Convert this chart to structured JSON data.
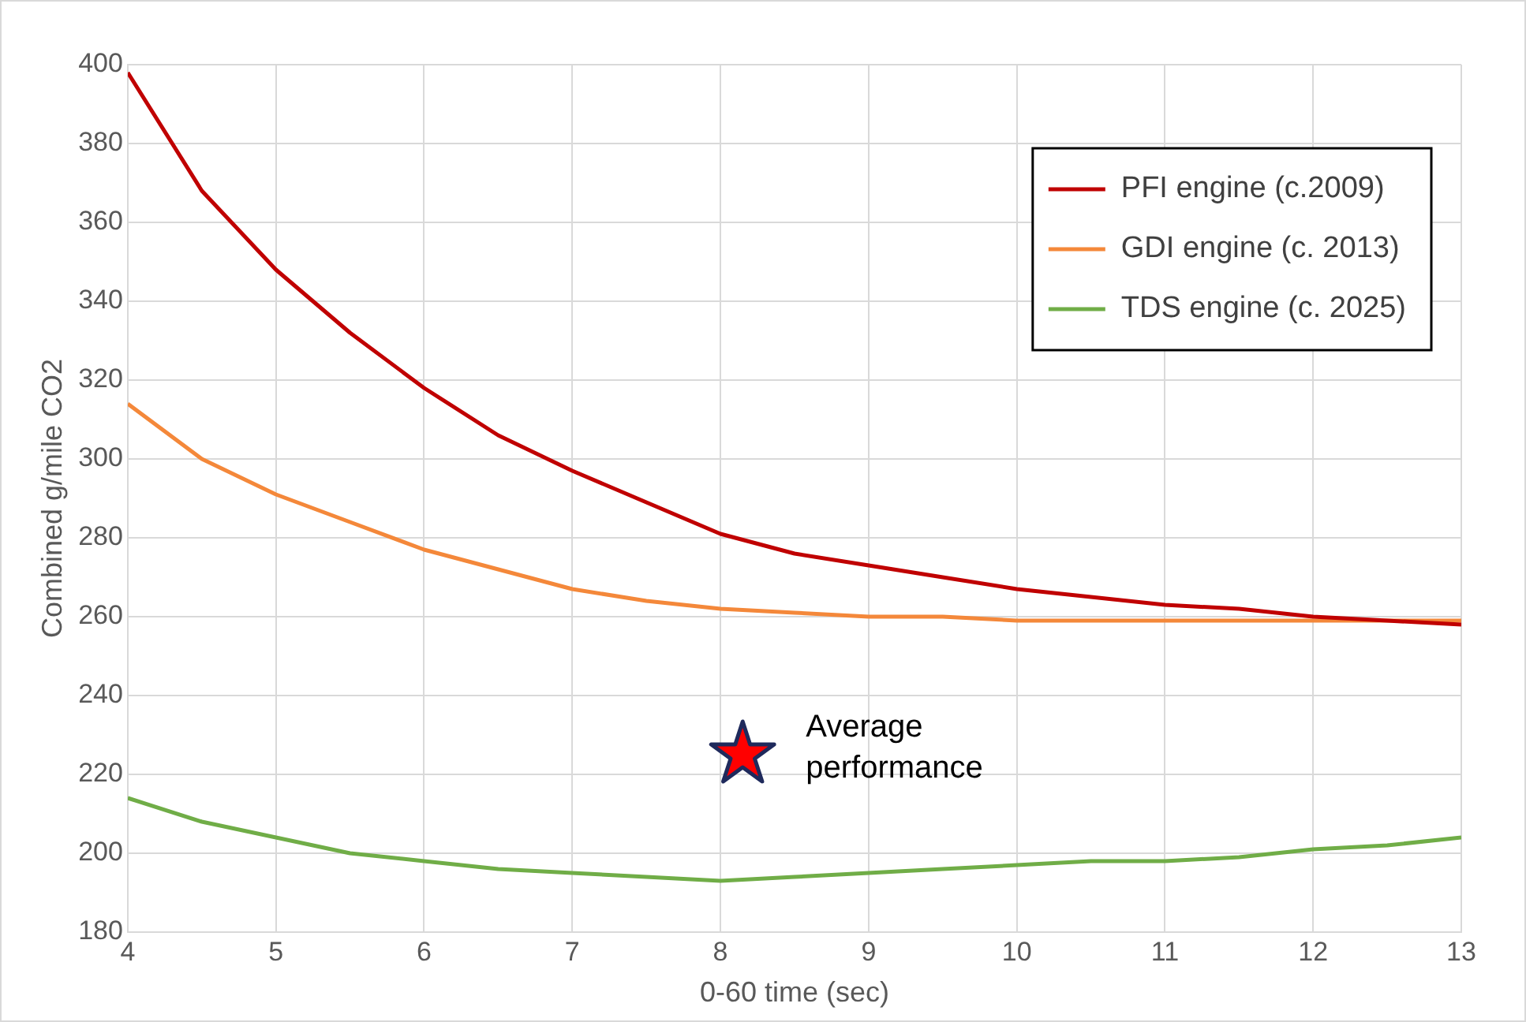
{
  "chart_data": {
    "type": "line",
    "xlabel": "0-60 time (sec)",
    "ylabel": "Combined g/mile CO2",
    "xlim": [
      4,
      13
    ],
    "xticks": [
      4,
      5,
      6,
      7,
      8,
      9,
      10,
      11,
      12,
      13
    ],
    "ylim": [
      180,
      400
    ],
    "yticks": [
      180,
      200,
      220,
      240,
      260,
      280,
      300,
      320,
      340,
      360,
      380,
      400
    ],
    "grid": true,
    "legend": "top right",
    "marker": "none",
    "line_style": "solid",
    "x": [
      4,
      4.5,
      5,
      5.5,
      6,
      6.5,
      7,
      7.5,
      8,
      8.5,
      9,
      9.5,
      10,
      10.5,
      11,
      11.5,
      12,
      12.5,
      13
    ],
    "series": [
      {
        "name": "PFI engine (c.2009)",
        "color": "#c00000",
        "values": [
          398,
          368,
          348,
          332,
          318,
          306,
          297,
          289,
          281,
          276,
          273,
          270,
          267,
          265,
          263,
          262,
          260,
          259,
          258
        ]
      },
      {
        "name": "GDI engine (c. 2013)",
        "color": "#f4883a",
        "values": [
          314,
          300,
          291,
          284,
          277,
          272,
          267,
          264,
          262,
          261,
          260,
          260,
          259,
          259,
          259,
          259,
          259,
          259,
          259
        ]
      },
      {
        "name": "TDS engine (c. 2025)",
        "color": "#70ad47",
        "values": [
          214,
          208,
          204,
          200,
          198,
          196,
          195,
          194,
          193,
          194,
          195,
          196,
          197,
          198,
          198,
          199,
          201,
          202,
          204
        ]
      },
      {
        "type": "scatter",
        "marker": "star",
        "color": "#ff0000",
        "x": [
          8.15
        ],
        "values": [
          225
        ]
      }
    ],
    "annotations": [
      {
        "text": "Average performance",
        "x": 8.15,
        "y": 225
      }
    ]
  }
}
